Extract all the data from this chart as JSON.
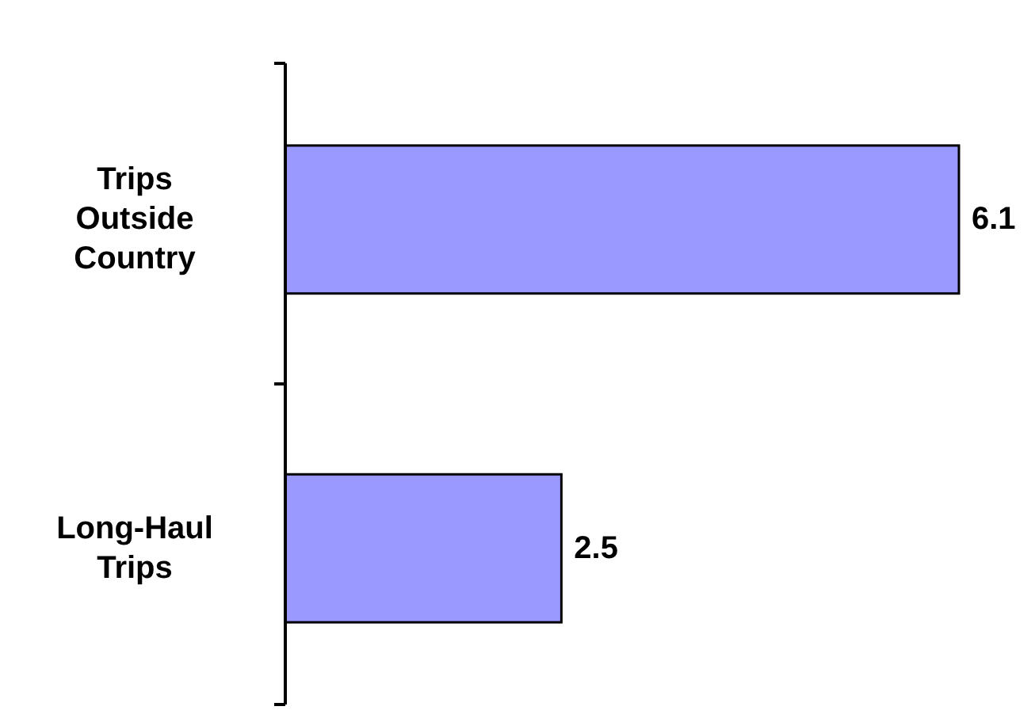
{
  "chart_data": {
    "type": "bar",
    "orientation": "horizontal",
    "categories": [
      "Trips Outside Country",
      "Long-Haul Trips"
    ],
    "values": [
      6.1,
      2.5
    ],
    "data_labels": true,
    "color": "#9999ff"
  }
}
